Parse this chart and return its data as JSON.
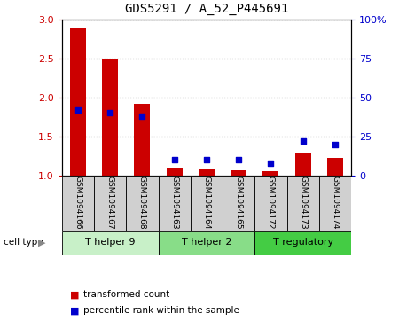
{
  "title": "GDS5291 / A_52_P445691",
  "samples": [
    "GSM1094166",
    "GSM1094167",
    "GSM1094168",
    "GSM1094163",
    "GSM1094164",
    "GSM1094165",
    "GSM1094172",
    "GSM1094173",
    "GSM1094174"
  ],
  "transformed_count": [
    2.88,
    2.5,
    1.92,
    1.1,
    1.08,
    1.07,
    1.05,
    1.28,
    1.23
  ],
  "percentile_rank_pct": [
    42,
    40,
    38,
    10,
    10,
    10,
    8,
    22,
    20
  ],
  "groups": [
    {
      "label": "T helper 9",
      "start": 0,
      "end": 3,
      "color": "#c8f0c8"
    },
    {
      "label": "T helper 2",
      "start": 3,
      "end": 6,
      "color": "#88dd88"
    },
    {
      "label": "T regulatory",
      "start": 6,
      "end": 9,
      "color": "#44cc44"
    }
  ],
  "ylim_left": [
    1.0,
    3.0
  ],
  "ylim_right": [
    0,
    100
  ],
  "yticks_left": [
    1.0,
    1.5,
    2.0,
    2.5,
    3.0
  ],
  "yticks_right": [
    0,
    25,
    50,
    75,
    100
  ],
  "bar_color": "#cc0000",
  "dot_color": "#0000cc",
  "bar_width": 0.5,
  "background_color": "#ffffff",
  "sample_box_color": "#d0d0d0",
  "cell_type_label": "cell type",
  "legend_bar_label": "transformed count",
  "legend_dot_label": "percentile rank within the sample"
}
